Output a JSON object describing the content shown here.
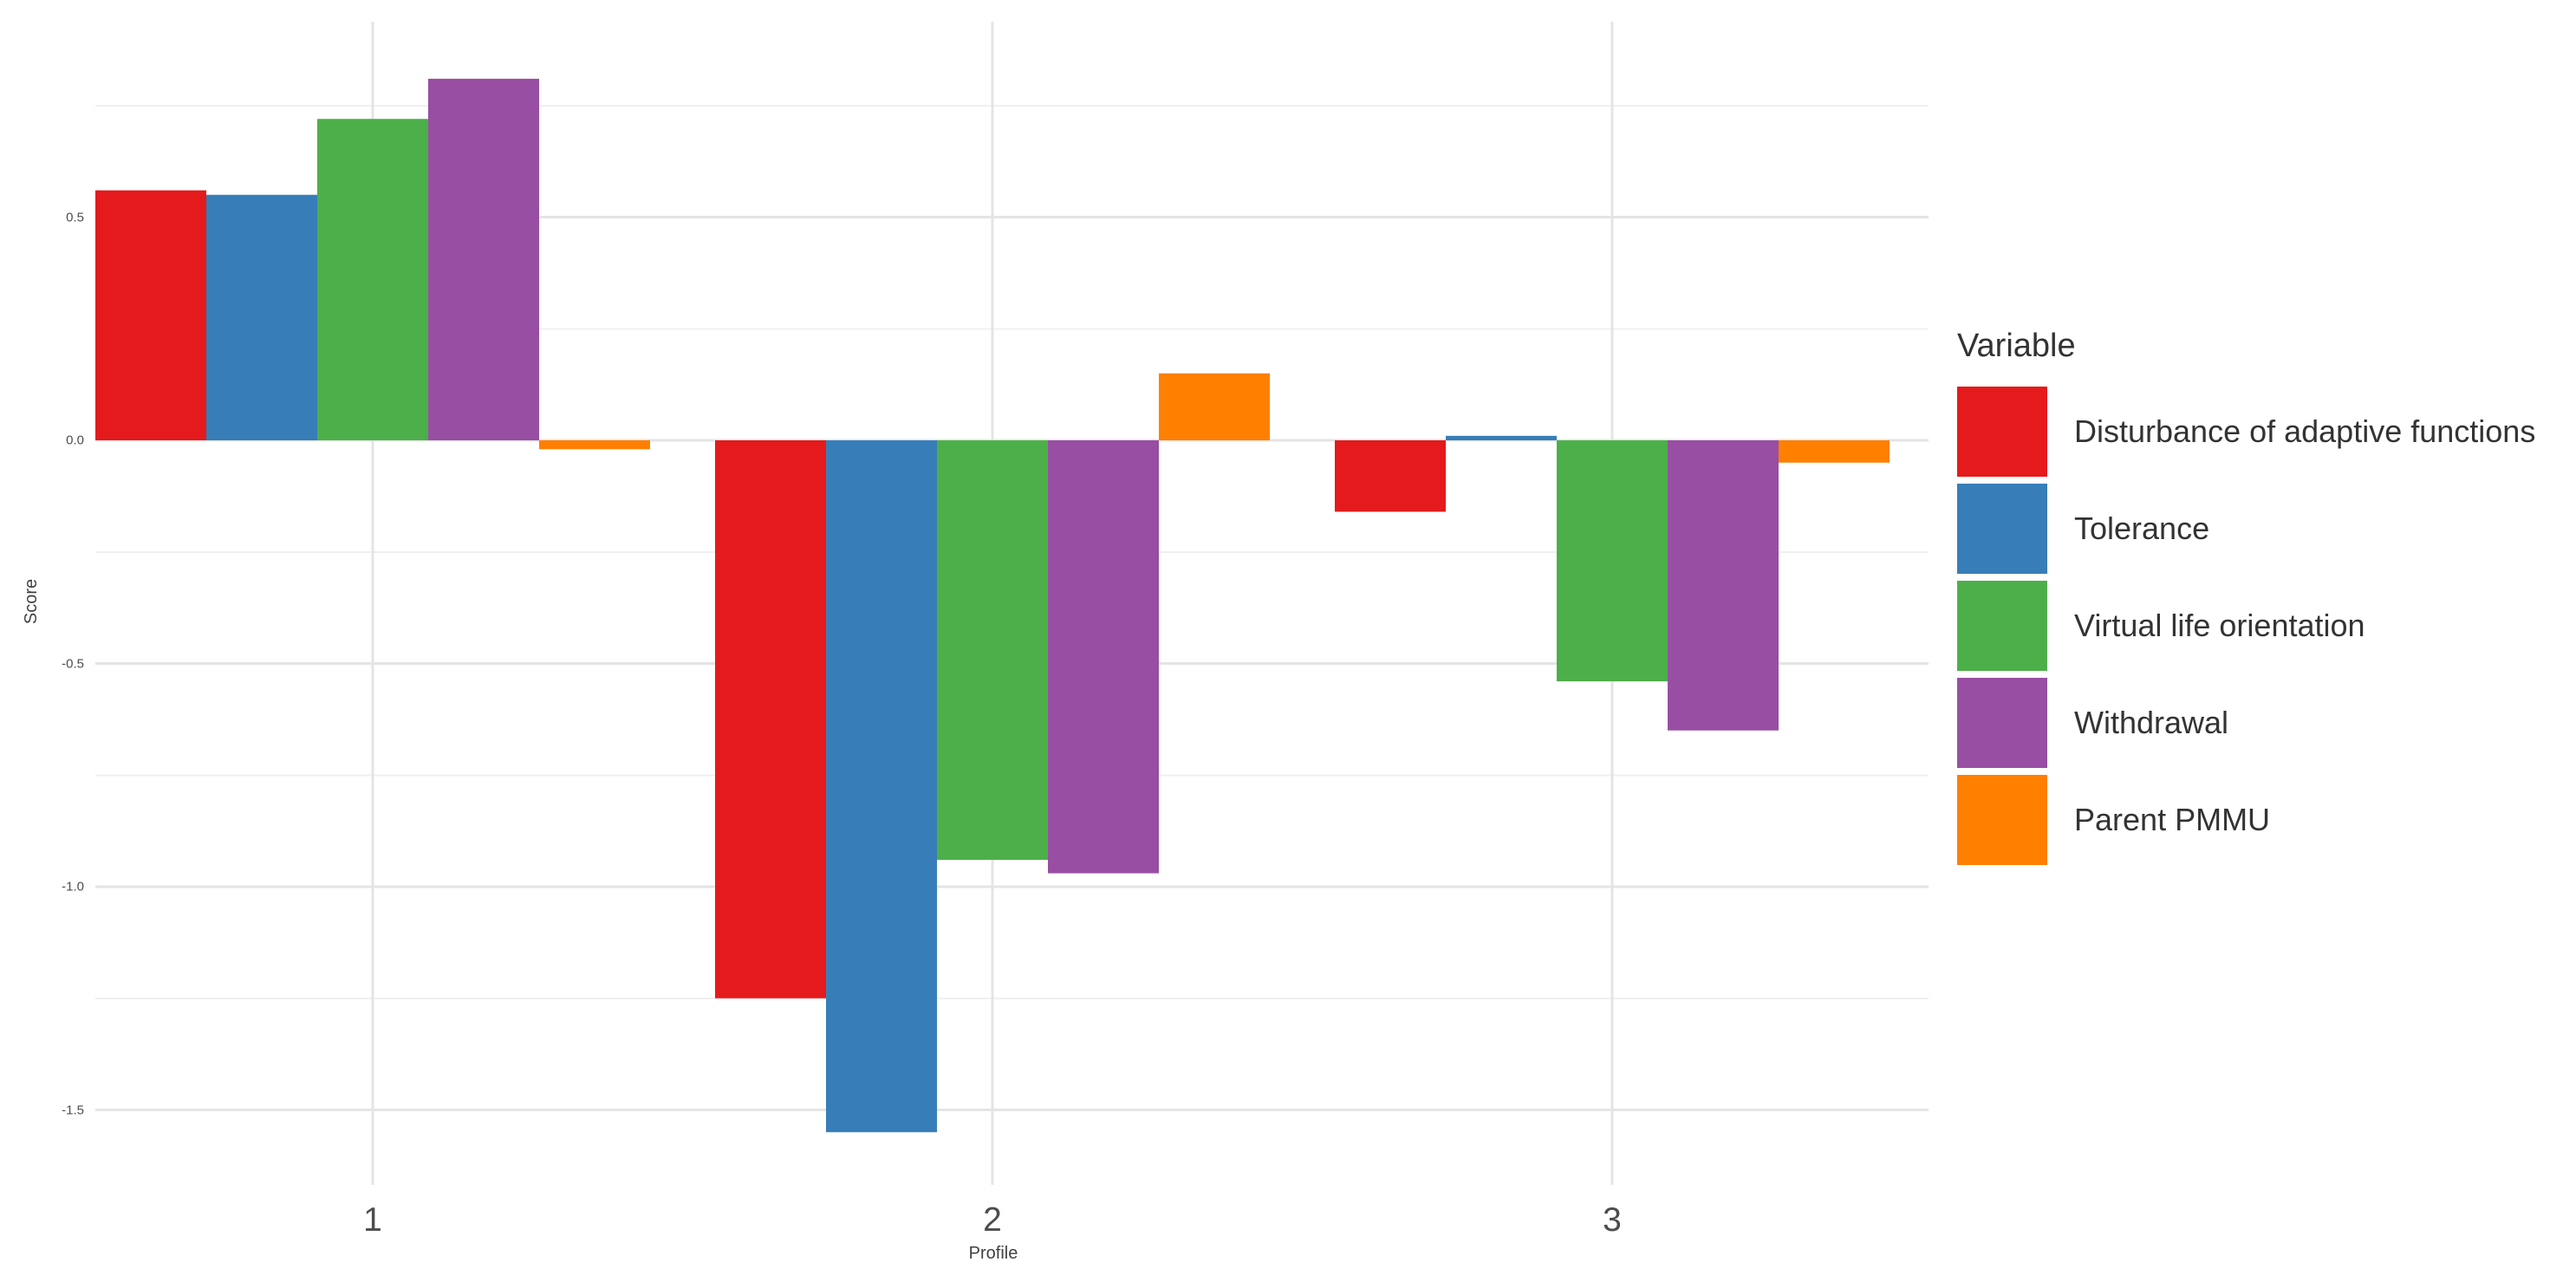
{
  "chart_data": {
    "type": "bar",
    "bar_mode": "grouped",
    "title": "",
    "xlabel": "Profile",
    "ylabel": "Score",
    "legend_title": "Variable",
    "legend_position": "right",
    "categories": [
      "1",
      "2",
      "3"
    ],
    "series": [
      {
        "name": "Disturbance of adaptive functions",
        "color": "#E41A1C",
        "values": [
          0.56,
          -1.25,
          -0.16
        ]
      },
      {
        "name": "Tolerance",
        "color": "#377EB8",
        "values": [
          0.55,
          -1.55,
          0.01
        ]
      },
      {
        "name": "Virtual life orientation",
        "color": "#4DAF4A",
        "values": [
          0.72,
          -0.94,
          -0.54
        ]
      },
      {
        "name": "Withdrawal",
        "color": "#984EA3",
        "values": [
          0.81,
          -0.97,
          -0.65
        ]
      },
      {
        "name": "Parent PMMU",
        "color": "#FF7F00",
        "values": [
          -0.02,
          0.15,
          -0.05
        ]
      }
    ],
    "y_ticks": [
      {
        "label": "0.5",
        "value": 0.5
      },
      {
        "label": "0.0",
        "value": 0.0
      },
      {
        "label": "-0.5",
        "value": -0.5
      },
      {
        "label": "-1.0",
        "value": -1.0
      },
      {
        "label": "-1.5",
        "value": -1.5
      }
    ],
    "y_minor_ticks": [
      0.75,
      0.25,
      -0.25,
      -0.75,
      -1.25
    ],
    "ylim": [
      -1.67,
      0.94
    ],
    "grid": true,
    "style": {
      "background": "#FFFFFF",
      "grid_major_color": "#E4E4E4",
      "grid_minor_color": "#F0F0F0",
      "tick_text_color": "#4D4D4D",
      "axis_title_color": "#404040",
      "legend_text_color": "#333333"
    }
  }
}
